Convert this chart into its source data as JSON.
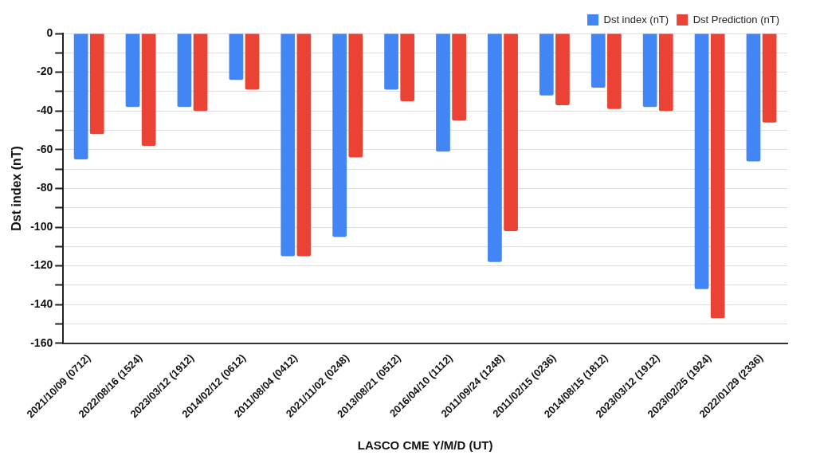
{
  "chart_data": {
    "type": "bar",
    "xlabel": "LASCO CME Y/M/D (UT)",
    "ylabel": "Dst index (nT)",
    "categories": [
      "2021/10/09 (0712)",
      "2022/08/16 (1524)",
      "2023/03/12 (1912)",
      "2014/02/12 (0612)",
      "2011/08/04 (0412)",
      "2021/11/02 (0248)",
      "2013/08/21 (0512)",
      "2016/04/10 (1112)",
      "2011/09/24 (1248)",
      "2011/02/15 (0236)",
      "2014/08/15 (1812)",
      "2023/03/12 (1912)",
      "2023/02/25 (1924)",
      "2022/01/29 (2336)"
    ],
    "series": [
      {
        "name": "Dst index (nT)",
        "color": "#4285f4",
        "values": [
          -65,
          -38,
          -38,
          -24,
          -115,
          -105,
          -29,
          -61,
          -118,
          -32,
          -28,
          -38,
          -132,
          -66
        ]
      },
      {
        "name": "Dst Prediction (nT)",
        "color": "#ea4335",
        "values": [
          -52,
          -58,
          -40,
          -29,
          -115,
          -64,
          -35,
          -45,
          -102,
          -37,
          -39,
          -40,
          -147,
          -46
        ]
      }
    ],
    "ylim": [
      -160,
      0
    ],
    "yticks": [
      -160,
      {
        "value": -150,
        "label": null
      },
      -140,
      {
        "value": -130,
        "label": null
      },
      -120,
      {
        "value": -110,
        "label": null
      },
      -100,
      {
        "value": -90,
        "label": null
      },
      -80,
      {
        "value": -70,
        "label": null
      },
      -60,
      {
        "value": -50,
        "label": null
      },
      -40,
      {
        "value": -30,
        "label": null
      },
      -20,
      {
        "value": -10,
        "label": null
      },
      0
    ],
    "grid": "y",
    "legend": "top right"
  }
}
